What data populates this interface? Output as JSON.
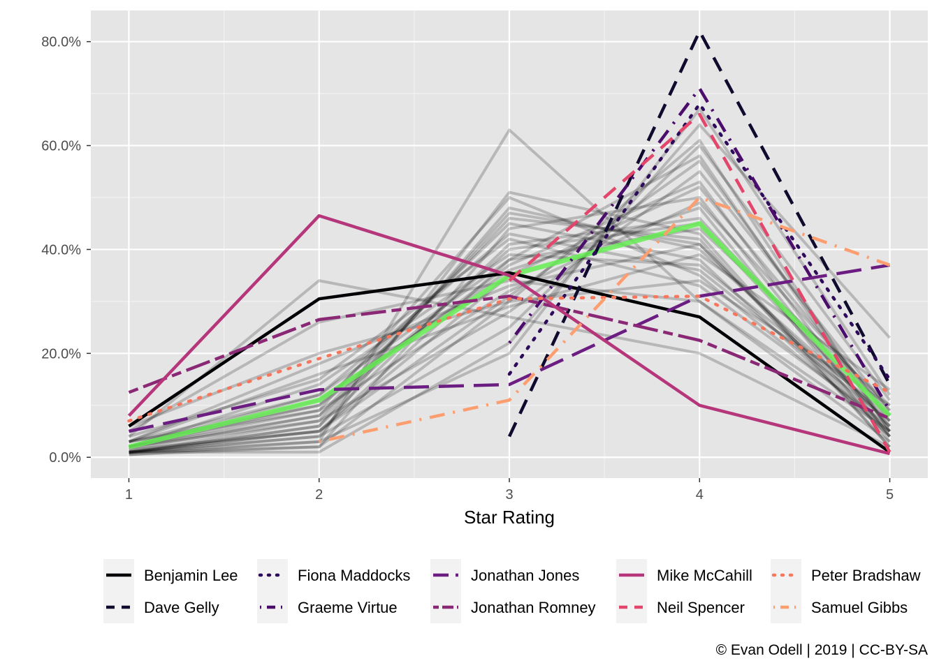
{
  "chart_data": {
    "type": "line",
    "title": "",
    "xlabel": "Star Rating",
    "ylabel": "",
    "x": [
      1,
      2,
      3,
      4,
      5
    ],
    "xlim": [
      0.8,
      5.2
    ],
    "ylim": [
      -0.04,
      0.86
    ],
    "x_ticks": [
      "1",
      "2",
      "3",
      "4",
      "5"
    ],
    "y_ticks": [
      {
        "value": 0.0,
        "label": "0.0%"
      },
      {
        "value": 0.2,
        "label": "20.0%"
      },
      {
        "value": 0.4,
        "label": "40.0%"
      },
      {
        "value": 0.6,
        "label": "60.0%"
      },
      {
        "value": 0.8,
        "label": "80.0%"
      }
    ],
    "grid": true,
    "legend_position": "bottom",
    "background_color": "#e5e5e5",
    "average_series": {
      "color": "#66ee55",
      "values": [
        0.02,
        0.11,
        0.35,
        0.45,
        0.08
      ]
    },
    "other_critics": {
      "color": "#000000",
      "opacity": 0.2,
      "series": [
        [
          0.005,
          0.02,
          0.3,
          0.61,
          0.05
        ],
        [
          0.01,
          0.05,
          0.35,
          0.52,
          0.08
        ],
        [
          0.02,
          0.08,
          0.4,
          0.45,
          0.06
        ],
        [
          0.03,
          0.1,
          0.45,
          0.38,
          0.04
        ],
        [
          0.01,
          0.03,
          0.63,
          0.3,
          0.03
        ],
        [
          0.02,
          0.09,
          0.5,
          0.35,
          0.05
        ],
        [
          0.008,
          0.06,
          0.48,
          0.4,
          0.07
        ],
        [
          0.03,
          0.12,
          0.38,
          0.44,
          0.1
        ],
        [
          0.04,
          0.15,
          0.42,
          0.33,
          0.06
        ],
        [
          0.02,
          0.07,
          0.28,
          0.55,
          0.09
        ],
        [
          0.01,
          0.04,
          0.25,
          0.6,
          0.11
        ],
        [
          0.005,
          0.03,
          0.2,
          0.67,
          0.12
        ],
        [
          0.03,
          0.18,
          0.33,
          0.41,
          0.05
        ],
        [
          0.02,
          0.11,
          0.36,
          0.48,
          0.03
        ],
        [
          0.01,
          0.02,
          0.44,
          0.5,
          0.04
        ],
        [
          0.02,
          0.14,
          0.39,
          0.37,
          0.08
        ],
        [
          0.05,
          0.26,
          0.34,
          0.3,
          0.05
        ],
        [
          0.01,
          0.05,
          0.31,
          0.57,
          0.07
        ],
        [
          0.015,
          0.08,
          0.46,
          0.42,
          0.02
        ],
        [
          0.03,
          0.16,
          0.29,
          0.39,
          0.13
        ],
        [
          0.01,
          0.06,
          0.41,
          0.46,
          0.06
        ],
        [
          0.02,
          0.1,
          0.37,
          0.53,
          0.04
        ],
        [
          0.04,
          0.34,
          0.27,
          0.2,
          0.02
        ],
        [
          0.008,
          0.04,
          0.51,
          0.43,
          0.02
        ],
        [
          0.01,
          0.01,
          0.22,
          0.64,
          0.23
        ],
        [
          0.02,
          0.12,
          0.43,
          0.36,
          0.07
        ],
        [
          0.03,
          0.09,
          0.32,
          0.49,
          0.09
        ],
        [
          0.01,
          0.07,
          0.47,
          0.41,
          0.04
        ],
        [
          0.06,
          0.2,
          0.3,
          0.34,
          0.1
        ],
        [
          0.015,
          0.05,
          0.38,
          0.58,
          0.05
        ]
      ]
    },
    "series": [
      {
        "name": "Benjamin Lee",
        "color": "#000004",
        "dash": "solid",
        "values": [
          0.06,
          0.305,
          0.355,
          0.27,
          0.01
        ]
      },
      {
        "name": "Dave Gelly",
        "color": "#0f0a2e",
        "dash": "dashed",
        "x": [
          3,
          4,
          5
        ],
        "values": [
          0.04,
          0.82,
          0.14
        ]
      },
      {
        "name": "Fiona Maddocks",
        "color": "#2d0b5a",
        "dash": "dotted",
        "x": [
          3,
          4,
          5
        ],
        "values": [
          0.16,
          0.68,
          0.15
        ]
      },
      {
        "name": "Graeme Virtue",
        "color": "#4b0c6b",
        "dash": "dotdash",
        "x": [
          3,
          4,
          5
        ],
        "values": [
          0.22,
          0.71,
          0.09
        ]
      },
      {
        "name": "Jonathan Jones",
        "color": "#6b1d81",
        "dash": "longdash",
        "values": [
          0.05,
          0.13,
          0.14,
          0.31,
          0.37
        ]
      },
      {
        "name": "Jonathan Romney",
        "color": "#8a2876",
        "dash": "twodash",
        "values": [
          0.125,
          0.265,
          0.31,
          0.225,
          0.075
        ]
      },
      {
        "name": "Mike McCahill",
        "color": "#b5367a",
        "dash": "solid",
        "values": [
          0.08,
          0.465,
          0.35,
          0.1,
          0.007
        ]
      },
      {
        "name": "Neil Spencer",
        "color": "#e3466b",
        "dash": "dashed",
        "x": [
          3,
          4,
          5
        ],
        "values": [
          0.34,
          0.66,
          0.01
        ]
      },
      {
        "name": "Peter Bradshaw",
        "color": "#f8765c",
        "dash": "dotted",
        "values": [
          0.07,
          0.19,
          0.305,
          0.31,
          0.125
        ]
      },
      {
        "name": "Samuel Gibbs",
        "color": "#fd9e70",
        "dash": "dotdash",
        "x": [
          2,
          3,
          4,
          5
        ],
        "values": [
          0.03,
          0.11,
          0.5,
          0.37
        ]
      }
    ]
  },
  "caption": "© Evan Odell | 2019 | CC-BY-SA"
}
